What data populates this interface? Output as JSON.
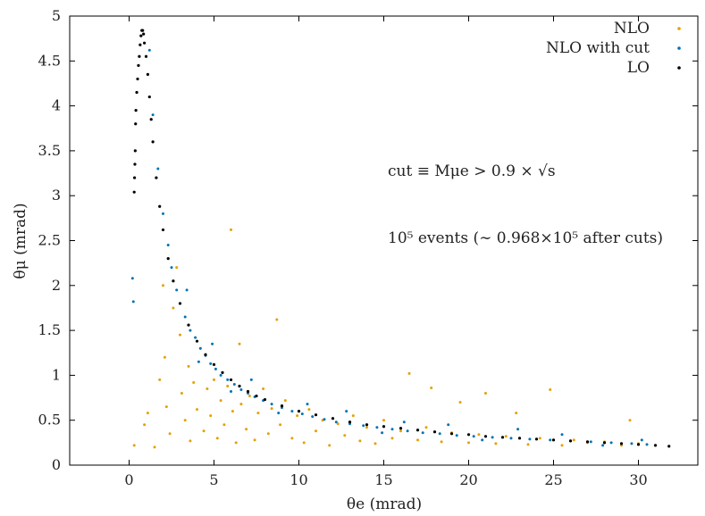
{
  "chart_data": {
    "type": "scatter",
    "xlabel": "θe (mrad)",
    "ylabel": "θμ (mrad)",
    "xlim": [
      -3.5,
      33.5
    ],
    "ylim": [
      0,
      5
    ],
    "xticks": [
      "0",
      "5",
      "10",
      "15",
      "20",
      "25",
      "30"
    ],
    "yticks": [
      "0",
      "0.5",
      "1",
      "1.5",
      "2",
      "2.5",
      "3",
      "3.5",
      "4",
      "4.5",
      "5"
    ],
    "grid": false,
    "legend_position": "top-right",
    "series": [
      {
        "name": "NLO",
        "color": "#e69f00",
        "points": [
          [
            0.3,
            0.22
          ],
          [
            0.9,
            0.45
          ],
          [
            1.1,
            0.58
          ],
          [
            1.5,
            0.2
          ],
          [
            1.8,
            0.95
          ],
          [
            2.0,
            2.0
          ],
          [
            2.1,
            1.2
          ],
          [
            2.2,
            0.65
          ],
          [
            2.4,
            0.35
          ],
          [
            2.6,
            1.75
          ],
          [
            2.8,
            2.2
          ],
          [
            3.0,
            1.45
          ],
          [
            3.1,
            0.8
          ],
          [
            3.3,
            0.5
          ],
          [
            3.5,
            1.1
          ],
          [
            3.6,
            0.27
          ],
          [
            3.8,
            0.92
          ],
          [
            4.0,
            0.62
          ],
          [
            4.2,
            1.3
          ],
          [
            4.4,
            0.38
          ],
          [
            4.6,
            0.85
          ],
          [
            4.8,
            0.55
          ],
          [
            5.0,
            0.95
          ],
          [
            5.2,
            0.3
          ],
          [
            5.4,
            0.72
          ],
          [
            5.6,
            0.45
          ],
          [
            5.8,
            0.88
          ],
          [
            6.0,
            2.62
          ],
          [
            6.1,
            0.6
          ],
          [
            6.3,
            0.25
          ],
          [
            6.5,
            1.35
          ],
          [
            6.6,
            0.68
          ],
          [
            6.9,
            0.4
          ],
          [
            7.1,
            0.77
          ],
          [
            7.4,
            0.28
          ],
          [
            7.6,
            0.58
          ],
          [
            7.9,
            0.85
          ],
          [
            8.2,
            0.35
          ],
          [
            8.4,
            0.63
          ],
          [
            8.7,
            1.62
          ],
          [
            8.9,
            0.45
          ],
          [
            9.2,
            0.72
          ],
          [
            9.6,
            0.3
          ],
          [
            9.9,
            0.55
          ],
          [
            10.3,
            0.25
          ],
          [
            10.6,
            0.62
          ],
          [
            11.0,
            0.38
          ],
          [
            11.4,
            0.5
          ],
          [
            11.8,
            0.22
          ],
          [
            12.3,
            0.46
          ],
          [
            12.7,
            0.33
          ],
          [
            13.2,
            0.55
          ],
          [
            13.6,
            0.27
          ],
          [
            14.0,
            0.42
          ],
          [
            14.5,
            0.24
          ],
          [
            15.0,
            0.5
          ],
          [
            15.5,
            0.3
          ],
          [
            16.0,
            0.38
          ],
          [
            16.5,
            1.02
          ],
          [
            17.0,
            0.28
          ],
          [
            17.5,
            0.42
          ],
          [
            17.8,
            0.86
          ],
          [
            18.4,
            0.26
          ],
          [
            19.0,
            0.36
          ],
          [
            19.5,
            0.7
          ],
          [
            20.0,
            0.25
          ],
          [
            20.6,
            0.34
          ],
          [
            21.0,
            0.8
          ],
          [
            21.6,
            0.24
          ],
          [
            22.2,
            0.32
          ],
          [
            22.8,
            0.58
          ],
          [
            23.5,
            0.23
          ],
          [
            24.2,
            0.3
          ],
          [
            24.8,
            0.84
          ],
          [
            25.5,
            0.22
          ],
          [
            26.2,
            0.28
          ],
          [
            27.0,
            0.25
          ],
          [
            28.0,
            0.26
          ],
          [
            29.0,
            0.22
          ],
          [
            29.5,
            0.5
          ],
          [
            30.0,
            0.24
          ]
        ]
      },
      {
        "name": "NLO with cut",
        "color": "#0072b2",
        "points": [
          [
            0.2,
            2.08
          ],
          [
            0.25,
            1.82
          ],
          [
            1.2,
            4.62
          ],
          [
            1.4,
            3.9
          ],
          [
            1.7,
            3.3
          ],
          [
            2.0,
            2.8
          ],
          [
            2.3,
            2.45
          ],
          [
            2.5,
            2.2
          ],
          [
            2.8,
            1.95
          ],
          [
            3.0,
            1.8
          ],
          [
            3.3,
            1.65
          ],
          [
            3.6,
            1.5
          ],
          [
            3.9,
            1.42
          ],
          [
            4.2,
            1.3
          ],
          [
            4.5,
            1.22
          ],
          [
            4.8,
            1.13
          ],
          [
            5.1,
            1.07
          ],
          [
            5.4,
            1.0
          ],
          [
            5.8,
            0.95
          ],
          [
            6.2,
            0.9
          ],
          [
            6.6,
            0.84
          ],
          [
            7.0,
            0.8
          ],
          [
            7.4,
            0.76
          ],
          [
            7.9,
            0.72
          ],
          [
            8.4,
            0.68
          ],
          [
            9.0,
            0.64
          ],
          [
            9.6,
            0.6
          ],
          [
            10.2,
            0.57
          ],
          [
            10.8,
            0.54
          ],
          [
            11.5,
            0.51
          ],
          [
            12.2,
            0.48
          ],
          [
            13.0,
            0.46
          ],
          [
            13.8,
            0.44
          ],
          [
            14.6,
            0.42
          ],
          [
            15.5,
            0.4
          ],
          [
            16.4,
            0.38
          ],
          [
            17.3,
            0.36
          ],
          [
            18.3,
            0.35
          ],
          [
            19.3,
            0.33
          ],
          [
            20.3,
            0.32
          ],
          [
            21.4,
            0.31
          ],
          [
            22.5,
            0.3
          ],
          [
            23.6,
            0.29
          ],
          [
            24.8,
            0.28
          ],
          [
            26.0,
            0.27
          ],
          [
            27.2,
            0.26
          ],
          [
            28.4,
            0.25
          ],
          [
            29.6,
            0.24
          ],
          [
            30.5,
            0.23
          ],
          [
            3.4,
            1.95
          ],
          [
            4.1,
            1.15
          ],
          [
            4.9,
            1.35
          ],
          [
            6.0,
            0.82
          ],
          [
            7.2,
            0.95
          ],
          [
            8.8,
            0.58
          ],
          [
            10.5,
            0.68
          ],
          [
            12.8,
            0.6
          ],
          [
            14.9,
            0.36
          ],
          [
            16.2,
            0.48
          ],
          [
            18.8,
            0.45
          ],
          [
            20.8,
            0.28
          ],
          [
            22.9,
            0.4
          ],
          [
            25.5,
            0.34
          ],
          [
            27.9,
            0.22
          ],
          [
            30.2,
            0.28
          ]
        ]
      },
      {
        "name": "LO",
        "color": "#000000",
        "points": [
          [
            0.3,
            3.04
          ],
          [
            0.32,
            3.2
          ],
          [
            0.34,
            3.35
          ],
          [
            0.36,
            3.5
          ],
          [
            0.38,
            3.8
          ],
          [
            0.4,
            3.95
          ],
          [
            0.45,
            4.15
          ],
          [
            0.5,
            4.3
          ],
          [
            0.55,
            4.45
          ],
          [
            0.6,
            4.55
          ],
          [
            0.65,
            4.68
          ],
          [
            0.7,
            4.78
          ],
          [
            0.75,
            4.84
          ],
          [
            0.8,
            4.84
          ],
          [
            0.85,
            4.8
          ],
          [
            0.9,
            4.7
          ],
          [
            1.0,
            4.55
          ],
          [
            1.1,
            4.35
          ],
          [
            1.2,
            4.1
          ],
          [
            1.3,
            3.85
          ],
          [
            1.4,
            3.6
          ],
          [
            1.6,
            3.2
          ],
          [
            1.8,
            2.88
          ],
          [
            2.0,
            2.62
          ],
          [
            2.3,
            2.3
          ],
          [
            2.6,
            2.05
          ],
          [
            3.0,
            1.8
          ],
          [
            3.5,
            1.56
          ],
          [
            4.0,
            1.38
          ],
          [
            4.5,
            1.23
          ],
          [
            5.0,
            1.12
          ],
          [
            5.5,
            1.03
          ],
          [
            6.0,
            0.95
          ],
          [
            6.5,
            0.88
          ],
          [
            7.0,
            0.82
          ],
          [
            7.5,
            0.77
          ],
          [
            8.0,
            0.73
          ],
          [
            9.0,
            0.66
          ],
          [
            10.0,
            0.6
          ],
          [
            11.0,
            0.56
          ],
          [
            12.0,
            0.52
          ],
          [
            13.0,
            0.48
          ],
          [
            14.0,
            0.45
          ],
          [
            15.0,
            0.43
          ],
          [
            16.0,
            0.41
          ],
          [
            17.0,
            0.39
          ],
          [
            18.0,
            0.37
          ],
          [
            19.0,
            0.35
          ],
          [
            20.0,
            0.34
          ],
          [
            21.0,
            0.32
          ],
          [
            22.0,
            0.31
          ],
          [
            23.0,
            0.3
          ],
          [
            24.0,
            0.29
          ],
          [
            25.0,
            0.28
          ],
          [
            26.0,
            0.27
          ],
          [
            27.0,
            0.26
          ],
          [
            28.0,
            0.25
          ],
          [
            29.0,
            0.24
          ],
          [
            30.0,
            0.23
          ],
          [
            31.0,
            0.22
          ],
          [
            31.8,
            0.21
          ]
        ]
      }
    ],
    "annotations": {
      "cut_label": "cut ≡ Mμe > 0.9 × √s",
      "events_label": "10⁵ events (∼ 0.968×10⁵ after cuts)"
    }
  }
}
